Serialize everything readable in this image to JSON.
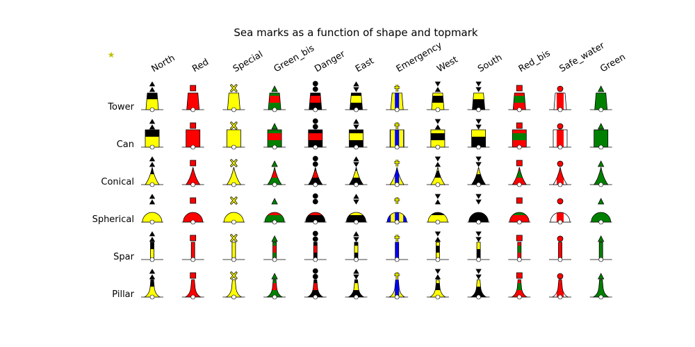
{
  "figure": {
    "title": "Sea marks as a function of shape and topmark",
    "corner_symbol": "★"
  },
  "colors": {
    "black": "#000000",
    "yellow": "#ffff00",
    "red": "#ff0000",
    "green": "#008000",
    "blue": "#0000ff",
    "white": "#ffffff",
    "star": "#bfbf00"
  },
  "columns": [
    {
      "label": "North",
      "bands": [
        "black",
        "yellow"
      ],
      "topmark": "two cones up",
      "topmark_color": "black"
    },
    {
      "label": "Red",
      "bands": [
        "red"
      ],
      "topmark": "square",
      "topmark_color": "red"
    },
    {
      "label": "Special",
      "bands": [
        "yellow"
      ],
      "topmark": "x cross",
      "topmark_color": "yellow"
    },
    {
      "label": "Green_bis",
      "bands": [
        "green",
        "red",
        "green"
      ],
      "topmark": "cone up",
      "topmark_color": "green"
    },
    {
      "label": "Danger",
      "bands": [
        "black",
        "red",
        "black"
      ],
      "topmark": "two spheres",
      "topmark_color": "black"
    },
    {
      "label": "East",
      "bands": [
        "black",
        "yellow",
        "black"
      ],
      "topmark": "diamond",
      "topmark_color": "black"
    },
    {
      "label": "Emergency",
      "bands": [
        "blue",
        "yellow",
        "blue",
        "yellow",
        "blue"
      ],
      "vertical": true,
      "topmark": "cross",
      "topmark_color": "yellow"
    },
    {
      "label": "West",
      "bands": [
        "yellow",
        "black",
        "yellow"
      ],
      "topmark": "hourglass",
      "topmark_color": "black"
    },
    {
      "label": "South",
      "bands": [
        "yellow",
        "black"
      ],
      "topmark": "two cones down",
      "topmark_color": "black"
    },
    {
      "label": "Red_bis",
      "bands": [
        "red",
        "green",
        "red"
      ],
      "topmark": "square",
      "topmark_color": "red"
    },
    {
      "label": "Safe_water",
      "bands": [
        "white",
        "red",
        "white"
      ],
      "vertical": true,
      "topmark": "sphere",
      "topmark_color": "red"
    },
    {
      "label": "Green",
      "bands": [
        "green"
      ],
      "topmark": "cone up",
      "topmark_color": "green"
    }
  ],
  "rows": [
    {
      "label": "Tower",
      "shape": "tower"
    },
    {
      "label": "Can",
      "shape": "can"
    },
    {
      "label": "Conical",
      "shape": "conical"
    },
    {
      "label": "Spherical",
      "shape": "spherical"
    },
    {
      "label": "Spar",
      "shape": "spar"
    },
    {
      "label": "Pillar",
      "shape": "pillar"
    }
  ]
}
